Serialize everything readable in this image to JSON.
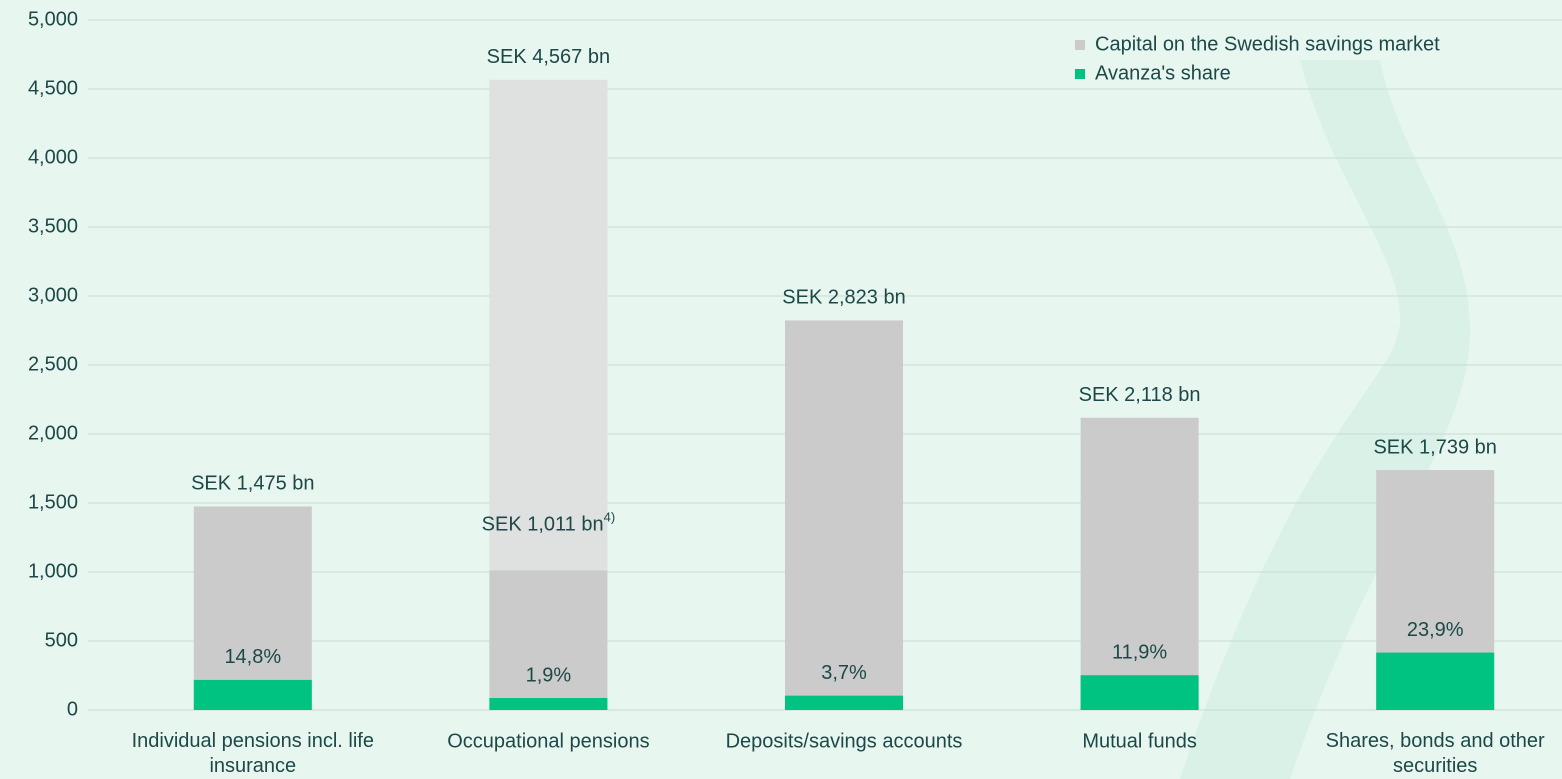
{
  "chart_data": {
    "type": "bar",
    "categories": [
      "Individual pensions incl. life insurance",
      "Occupational pensions",
      "Deposits/savings accounts",
      "Mutual funds",
      "Shares, bonds and other securities"
    ],
    "series": [
      {
        "name": "Capital on the Swedish savings market",
        "color": "#cbcbcb",
        "values": [
          1475,
          4567,
          2823,
          2118,
          1739
        ],
        "value_labels": [
          "SEK 1,475 bn",
          "SEK 4,567 bn",
          "SEK 2,823 bn",
          "SEK 2,118 bn",
          "SEK 1,739 bn"
        ]
      },
      {
        "name": "Avanza's share",
        "color": "#00c281",
        "values": [
          218,
          87,
          104,
          252,
          416
        ],
        "value_labels": [
          "14,8%",
          "1,9%",
          "3,7%",
          "11,9%",
          "23,9%"
        ]
      }
    ],
    "annotations": [
      {
        "text": "SEK 1,011 bn",
        "superscript": "4)",
        "category": "Occupational pensions",
        "value": 1011,
        "upper_color": "#dee1df"
      }
    ],
    "ylim": [
      0,
      5000
    ],
    "yticks": [
      0,
      {
        "value": 500,
        "label": "500"
      },
      {
        "value": 1000,
        "label": "1,000"
      },
      {
        "value": 1500,
        "label": "1,500"
      },
      {
        "value": 2000,
        "label": "2,000"
      },
      {
        "value": 2500,
        "label": "2,500"
      },
      {
        "value": 3000,
        "label": "3,000"
      },
      {
        "value": 3500,
        "label": "3,500"
      },
      {
        "value": 4000,
        "label": "4,000"
      },
      {
        "value": 4500,
        "label": "4,500"
      },
      {
        "value": 5000,
        "label": "5,000"
      }
    ],
    "grid": true,
    "legend": "top-right"
  }
}
